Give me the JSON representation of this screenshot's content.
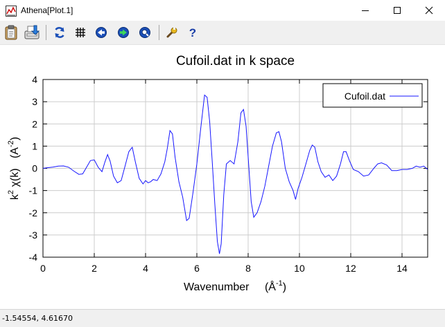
{
  "window": {
    "title": "Athena[Plot.1]",
    "controls": {
      "minimize_icon": "minimize-icon",
      "maximize_icon": "maximize-icon",
      "close_icon": "close-icon"
    }
  },
  "toolbar": {
    "buttons": [
      {
        "name": "clipboard-button",
        "icon": "clipboard-icon"
      },
      {
        "name": "save-button",
        "icon": "save-icon"
      },
      {
        "name": "refresh-button",
        "icon": "refresh-icon"
      },
      {
        "name": "grid-button",
        "icon": "grid-icon"
      },
      {
        "name": "zoom-back-button",
        "icon": "left-arrow-icon"
      },
      {
        "name": "zoom-forward-button",
        "icon": "right-arrow-icon"
      },
      {
        "name": "zoom-button",
        "icon": "zoom-icon"
      },
      {
        "name": "settings-button",
        "icon": "wrench-icon"
      },
      {
        "name": "help-button",
        "icon": "question-icon"
      }
    ]
  },
  "status": {
    "coordinates": "-1.54554,  4.61670"
  },
  "colors": {
    "series": "#1515ff",
    "grid": "#cccccc",
    "status_bg": "#f0f0f0"
  },
  "chart_data": {
    "type": "line",
    "title": "Cufoil.dat in k space",
    "xlabel_text": "Wavenumber",
    "xlabel_unit_base": "(Å",
    "xlabel_unit_exp": "-1",
    "xlabel_unit_close": ")",
    "ylabel_k": "k",
    "ylabel_k_exp": "2",
    "ylabel_chi": "χ(k)",
    "ylabel_unit_base": "(A",
    "ylabel_unit_exp": "-2",
    "ylabel_unit_close": ")",
    "xlim": [
      0,
      15
    ],
    "ylim": [
      -4,
      4
    ],
    "xticks": [
      "0",
      "2",
      "4",
      "6",
      "8",
      "10",
      "12",
      "14"
    ],
    "yticks": [
      "4",
      "3",
      "2",
      "1",
      "0",
      "-1",
      "-2",
      "-3",
      "-4"
    ],
    "grid": true,
    "legend_position": "top-right",
    "series": [
      {
        "name": "Cufoil.dat",
        "x": [
          0,
          0.2,
          0.4,
          0.6,
          0.8,
          1.0,
          1.2,
          1.4,
          1.55,
          1.7,
          1.85,
          2.0,
          2.15,
          2.3,
          2.42,
          2.52,
          2.62,
          2.75,
          2.9,
          3.05,
          3.2,
          3.35,
          3.48,
          3.6,
          3.75,
          3.9,
          4.0,
          4.1,
          4.2,
          4.3,
          4.45,
          4.6,
          4.75,
          4.85,
          4.95,
          5.05,
          5.15,
          5.3,
          5.45,
          5.6,
          5.7,
          5.85,
          6.0,
          6.15,
          6.3,
          6.4,
          6.5,
          6.6,
          6.7,
          6.8,
          6.88,
          6.95,
          7.05,
          7.15,
          7.3,
          7.45,
          7.6,
          7.72,
          7.82,
          7.92,
          8.02,
          8.12,
          8.22,
          8.35,
          8.5,
          8.65,
          8.8,
          8.95,
          9.1,
          9.2,
          9.3,
          9.45,
          9.6,
          9.75,
          9.85,
          9.95,
          10.1,
          10.25,
          10.4,
          10.5,
          10.6,
          10.72,
          10.85,
          11.0,
          11.15,
          11.3,
          11.45,
          11.6,
          11.72,
          11.82,
          11.95,
          12.1,
          12.3,
          12.5,
          12.7,
          12.9,
          13.05,
          13.2,
          13.4,
          13.6,
          13.8,
          14.0,
          14.2,
          14.4,
          14.55,
          14.7,
          14.85,
          15.0
        ],
        "y": [
          0.0,
          0.03,
          0.06,
          0.1,
          0.11,
          0.05,
          -0.12,
          -0.27,
          -0.25,
          0.05,
          0.35,
          0.38,
          0.05,
          -0.15,
          0.3,
          0.62,
          0.32,
          -0.35,
          -0.65,
          -0.55,
          0.1,
          0.75,
          0.95,
          0.3,
          -0.45,
          -0.7,
          -0.55,
          -0.65,
          -0.6,
          -0.5,
          -0.55,
          -0.25,
          0.3,
          0.9,
          1.7,
          1.55,
          0.5,
          -0.6,
          -1.3,
          -2.35,
          -2.25,
          -1.1,
          0.2,
          1.8,
          3.3,
          3.2,
          2.1,
          0.3,
          -1.6,
          -3.3,
          -3.85,
          -3.4,
          -1.2,
          0.2,
          0.35,
          0.2,
          1.2,
          2.5,
          2.65,
          1.9,
          0.2,
          -1.5,
          -2.2,
          -2.0,
          -1.5,
          -0.8,
          0.1,
          1.0,
          1.6,
          1.65,
          1.2,
          0.0,
          -0.6,
          -1.0,
          -1.4,
          -0.9,
          -0.4,
          0.2,
          0.8,
          1.05,
          0.95,
          0.3,
          -0.15,
          -0.4,
          -0.3,
          -0.55,
          -0.35,
          0.2,
          0.75,
          0.75,
          0.35,
          -0.05,
          -0.15,
          -0.35,
          -0.3,
          0.0,
          0.2,
          0.25,
          0.15,
          -0.1,
          -0.1,
          -0.05,
          -0.05,
          0.0,
          0.1,
          0.05,
          0.1,
          -0.05
        ]
      }
    ]
  }
}
